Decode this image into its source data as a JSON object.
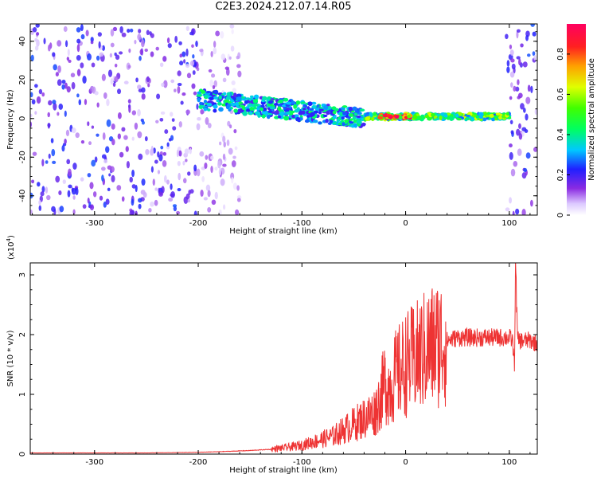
{
  "title": "C2E3.2024.212.07.14.R05",
  "chart_data": [
    {
      "type": "heatmap",
      "xlabel": "Height of straight line (km)",
      "ylabel": "Frequency (Hz)",
      "xlim": [
        -362,
        127
      ],
      "ylim": [
        -50,
        49
      ],
      "x_ticks": [
        -300,
        -200,
        -100,
        0,
        100
      ],
      "y_ticks": [
        -40,
        -20,
        0,
        20,
        40
      ],
      "colorbar": {
        "label": "Normalized spectral amplitude",
        "range": [
          0,
          0.95
        ],
        "ticks": [
          0.0,
          0.2,
          0.4,
          0.6,
          0.8
        ]
      },
      "features": [
        {
          "name": "noise",
          "x_range": [
            -362,
            -200
          ],
          "y_range": [
            -50,
            49
          ],
          "amplitude": 0.2
        },
        {
          "name": "noise",
          "x_range": [
            -200,
            -160
          ],
          "y_range": [
            -50,
            49
          ],
          "amplitude": 0.1
        },
        {
          "name": "signal",
          "x_start": -200,
          "x_end": -40,
          "freq_start": 10,
          "freq_end": 0,
          "width_hz": 10,
          "amplitude": 0.35
        },
        {
          "name": "signal",
          "x_start": -40,
          "x_end": 100,
          "freq": 1,
          "width_hz": 3,
          "amplitude": 0.5
        },
        {
          "name": "signal",
          "x_start": -25,
          "x_end": 5,
          "freq": 1,
          "width_hz": 1.5,
          "amplitude": 0.9
        },
        {
          "name": "noise",
          "x_range": [
            97,
            127
          ],
          "y_range": [
            -50,
            49
          ],
          "amplitude": 0.2
        }
      ]
    },
    {
      "type": "line",
      "xlabel": "Height of straight line (km)",
      "ylabel": "SNR (10 * v/v)",
      "y_multiplier": "(x10",
      "y_multiplier_exp": "4",
      "y_multiplier_close": ")",
      "xlim": [
        -362,
        127
      ],
      "ylim": [
        0,
        3.2
      ],
      "x_ticks": [
        -300,
        -200,
        -100,
        0,
        100
      ],
      "y_ticks": [
        0,
        1,
        2,
        3
      ],
      "color": "#ee3333",
      "series": [
        {
          "x": [
            -362,
            -300,
            -250,
            -200,
            -180,
            -150,
            -130,
            -110,
            -100,
            -90,
            -80,
            -70,
            -60,
            -50,
            -40,
            -30,
            -25,
            -20,
            -15,
            -10,
            -5,
            0,
            10,
            20,
            30,
            40,
            50,
            60,
            70,
            80,
            90,
            100,
            103,
            105,
            106,
            108,
            110,
            115,
            120,
            127
          ],
          "y": [
            0.02,
            0.02,
            0.02,
            0.03,
            0.04,
            0.06,
            0.08,
            0.12,
            0.15,
            0.2,
            0.25,
            0.3,
            0.4,
            0.5,
            0.6,
            0.7,
            0.9,
            1.2,
            1.1,
            1.3,
            1.4,
            1.5,
            1.6,
            1.75,
            1.85,
            1.9,
            1.95,
            1.95,
            1.95,
            1.95,
            1.95,
            1.95,
            1.9,
            1.5,
            3.2,
            1.9,
            1.9,
            1.9,
            1.9,
            1.85
          ]
        }
      ]
    }
  ]
}
